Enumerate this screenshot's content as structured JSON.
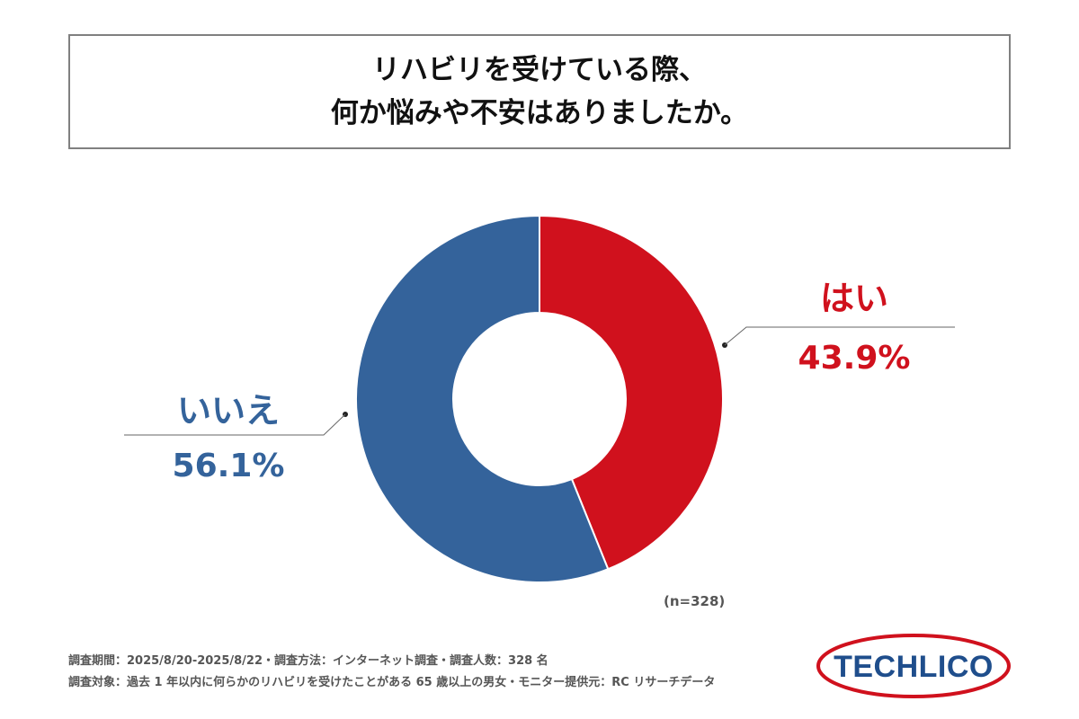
{
  "title": {
    "line1": "リハビリを受けている際、",
    "line2": "何か悩みや不安はありましたか。"
  },
  "chart_data": {
    "type": "pie",
    "variant": "donut",
    "categories": [
      "はい",
      "いいえ"
    ],
    "values": [
      43.9,
      56.1
    ],
    "value_labels": [
      "43.9%",
      "56.1%"
    ],
    "colors": [
      "#D0111D",
      "#34639B"
    ],
    "start": "12 o'clock, clockwise",
    "sample_size_label": "(n=328)"
  },
  "footnotes": {
    "line1": "調査期間：2025/8/20-2025/8/22・調査方法：インターネット調査・調査人数：328 名",
    "line2": "調査対象：過去 1 年以内に何らかのリハビリを受けたことがある 65 歳以上の男女・モニター提供元：RC リサーチデータ"
  },
  "logo": {
    "text": "TECHLICO",
    "text_color": "#1F4E8C",
    "ring_color": "#D0111D"
  }
}
